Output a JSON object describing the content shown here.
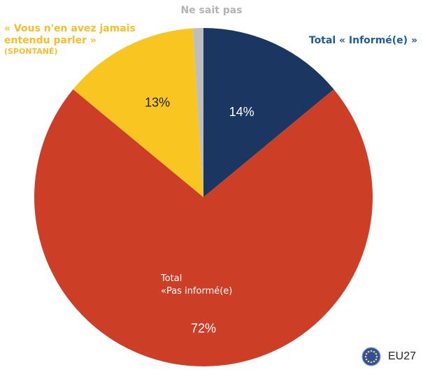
{
  "chart_data": {
    "type": "pie",
    "slices": [
      {
        "name": "Total « Informé(e) »",
        "value": 14,
        "label": "14%",
        "color": "#1b3660"
      },
      {
        "name": "Total «Pas informé(e)",
        "value": 72,
        "label": "72%",
        "color": "#cd3e27"
      },
      {
        "name": "« Vous n'en avez jamais entendu parler » (SPONTANÉ)",
        "value": 13,
        "label": "13%",
        "color": "#f8c521"
      },
      {
        "name": "Ne sait pas",
        "value": 1,
        "label": "",
        "color": "#bcbec0"
      }
    ]
  },
  "labels": {
    "dont_know": "Ne sait pas",
    "informed": "Total « Informé(e) »",
    "never_heard": "« Vous n'en avez jamais entendu parler »",
    "never_heard_sub": "(SPONTANÉ)",
    "not_informed_line1": "Total",
    "not_informed_line2": "«Pas informé(e)"
  },
  "legend": {
    "label": "EU27",
    "icon": "eu-flag-icon"
  }
}
